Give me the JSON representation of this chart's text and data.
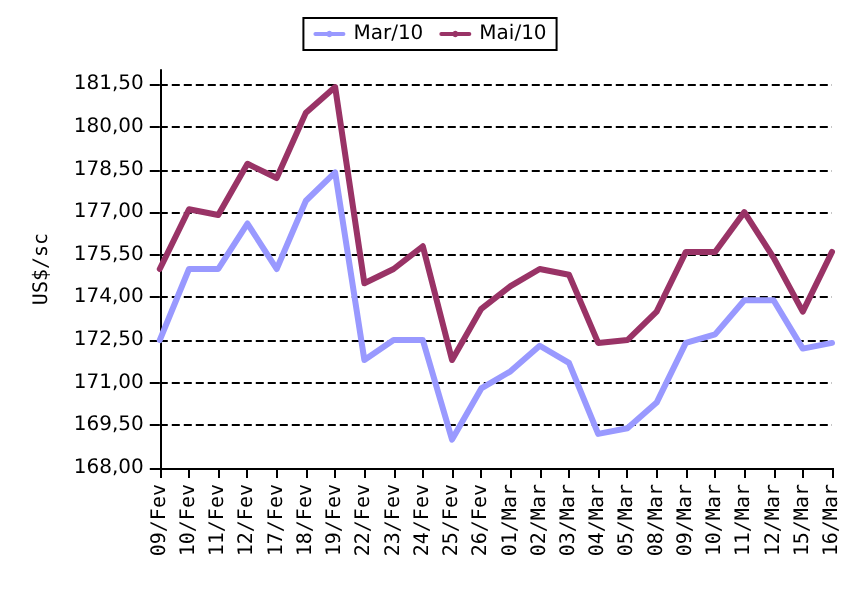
{
  "chart_data": {
    "type": "line",
    "ylabel": "US$/sc",
    "categories": [
      "09/Fev",
      "10/Fev",
      "11/Fev",
      "12/Fev",
      "17/Fev",
      "18/Fev",
      "19/Fev",
      "22/Fev",
      "23/Fev",
      "24/Fev",
      "25/Fev",
      "26/Fev",
      "01/Mar",
      "02/Mar",
      "03/Mar",
      "04/Mar",
      "05/Mar",
      "08/Mar",
      "09/Mar",
      "10/Mar",
      "11/Mar",
      "12/Mar",
      "15/Mar",
      "16/Mar"
    ],
    "series": [
      {
        "name": "Mar/10",
        "color": "#9999ff",
        "values": [
          172.5,
          175.0,
          175.0,
          176.6,
          175.0,
          177.4,
          178.4,
          171.8,
          172.5,
          172.5,
          169.0,
          170.8,
          171.4,
          172.3,
          171.7,
          169.2,
          169.4,
          170.3,
          172.4,
          172.7,
          173.9,
          173.9,
          172.2,
          172.4
        ]
      },
      {
        "name": "Mai/10",
        "color": "#993366",
        "values": [
          175.0,
          177.1,
          176.9,
          178.7,
          178.2,
          180.5,
          181.4,
          174.5,
          175.0,
          175.8,
          171.8,
          173.6,
          174.4,
          175.0,
          174.8,
          172.4,
          172.5,
          173.5,
          175.6,
          175.6,
          177.0,
          175.4,
          173.5,
          175.6
        ]
      }
    ],
    "ylim": [
      168,
      182
    ],
    "yticks": [
      {
        "value": 168,
        "label": "168,00"
      },
      {
        "value": 169.5,
        "label": "169,50"
      },
      {
        "value": 171,
        "label": "171,00"
      },
      {
        "value": 172.5,
        "label": "172,50"
      },
      {
        "value": 174,
        "label": "174,00"
      },
      {
        "value": 175.5,
        "label": "175,50"
      },
      {
        "value": 177,
        "label": "177,00"
      },
      {
        "value": 178.5,
        "label": "178,50"
      },
      {
        "value": 180,
        "label": "180,00"
      },
      {
        "value": 181.5,
        "label": "181,50"
      }
    ],
    "grid": "y",
    "legend": "top",
    "marker": "none",
    "line_style": "solid"
  }
}
